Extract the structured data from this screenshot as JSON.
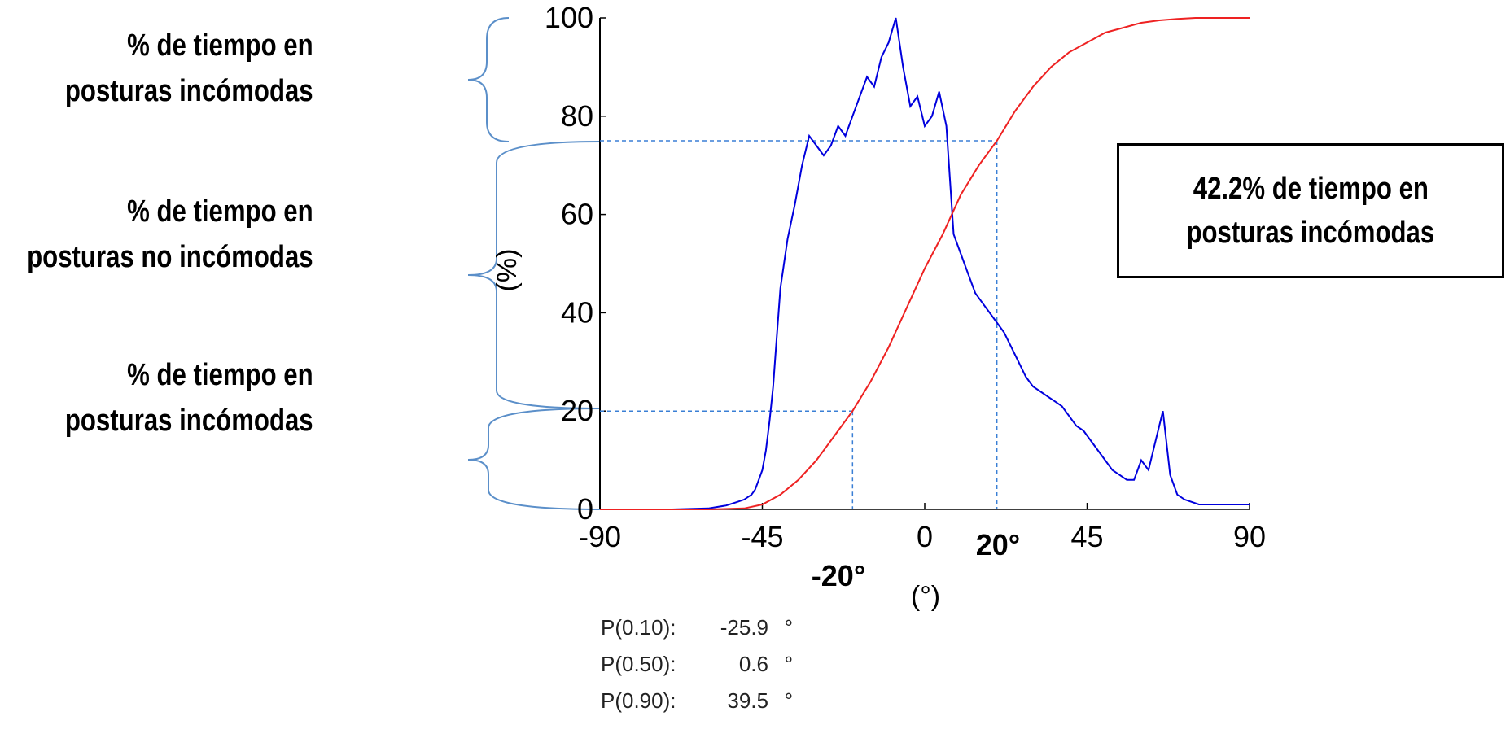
{
  "chart_data": {
    "type": "line",
    "xlabel": "(°)",
    "ylabel": "(%)",
    "xlim": [
      -90,
      90
    ],
    "ylim": [
      0,
      100
    ],
    "x_ticks": [
      "-90",
      "-45",
      "0",
      "45",
      "90"
    ],
    "y_ticks": [
      "0",
      "20",
      "40",
      "60",
      "80",
      "100"
    ],
    "grid": false,
    "series": [
      {
        "color": "#0000dd",
        "x": [
          -90,
          -70,
          -60,
          -55,
          -52,
          -50,
          -48,
          -47,
          -46,
          -45,
          -44,
          -43,
          -42,
          -41,
          -40,
          -38,
          -36,
          -34,
          -32,
          -30,
          -28,
          -26,
          -24,
          -22,
          -20,
          -18,
          -16,
          -14,
          -12,
          -10,
          -8,
          -6,
          -4,
          -2,
          0,
          2,
          4,
          6,
          8,
          10,
          12,
          14,
          16,
          18,
          20,
          22,
          24,
          26,
          28,
          30,
          32,
          34,
          36,
          38,
          40,
          42,
          44,
          46,
          48,
          50,
          52,
          54,
          56,
          58,
          60,
          62,
          64,
          66,
          68,
          70,
          72,
          74,
          76,
          78,
          80,
          82,
          84,
          86,
          88,
          90
        ],
        "y": [
          0,
          0,
          0.2,
          0.8,
          1.5,
          2,
          3,
          4,
          6,
          8,
          12,
          18,
          25,
          35,
          45,
          55,
          62,
          70,
          76,
          74,
          72,
          74,
          78,
          76,
          80,
          84,
          88,
          86,
          92,
          95,
          100,
          90,
          82,
          84,
          78,
          80,
          85,
          78,
          56,
          52,
          48,
          44,
          42,
          40,
          38,
          36,
          33,
          30,
          27,
          25,
          24,
          23,
          22,
          21,
          19,
          17,
          16,
          14,
          12,
          10,
          8,
          7,
          6,
          6,
          10,
          8,
          14,
          20,
          7,
          3,
          2,
          1.5,
          1,
          1,
          1,
          1,
          1,
          1,
          1,
          1
        ]
      },
      {
        "color": "#ee2222",
        "x": [
          -90,
          -60,
          -50,
          -45,
          -40,
          -35,
          -30,
          -25,
          -20,
          -15,
          -10,
          -5,
          0,
          5,
          10,
          15,
          20,
          25,
          30,
          35,
          40,
          45,
          50,
          55,
          60,
          65,
          70,
          75,
          80,
          85,
          90
        ],
        "y": [
          0,
          0,
          0.2,
          1,
          3,
          6,
          10,
          15,
          20,
          26,
          33,
          41,
          49,
          56,
          64,
          70,
          75,
          81,
          86,
          90,
          93,
          95,
          97,
          98,
          99,
          99.5,
          99.8,
          100,
          100,
          100,
          100
        ]
      }
    ],
    "reference_lines": [
      {
        "x": -20,
        "y": 20
      },
      {
        "x": 20,
        "y": 75
      }
    ],
    "annotations": {
      "neg20": "-20°",
      "pos20": "20°"
    }
  },
  "side_labels": [
    {
      "line1": "% de tiempo en",
      "line2": "posturas incómodas"
    },
    {
      "line1": "% de tiempo en",
      "line2": "posturas no incómodas"
    },
    {
      "line1": "% de tiempo en",
      "line2": "posturas incómodas"
    }
  ],
  "annotation_box": {
    "line1": "42.2% de tiempo en",
    "line2": "posturas incómodas"
  },
  "percentiles": [
    {
      "key": "P(0.10):",
      "value": "-25.9",
      "unit": "°"
    },
    {
      "key": "P(0.50):",
      "value": "0.6",
      "unit": "°"
    },
    {
      "key": "P(0.90):",
      "value": "39.5",
      "unit": "°"
    }
  ]
}
